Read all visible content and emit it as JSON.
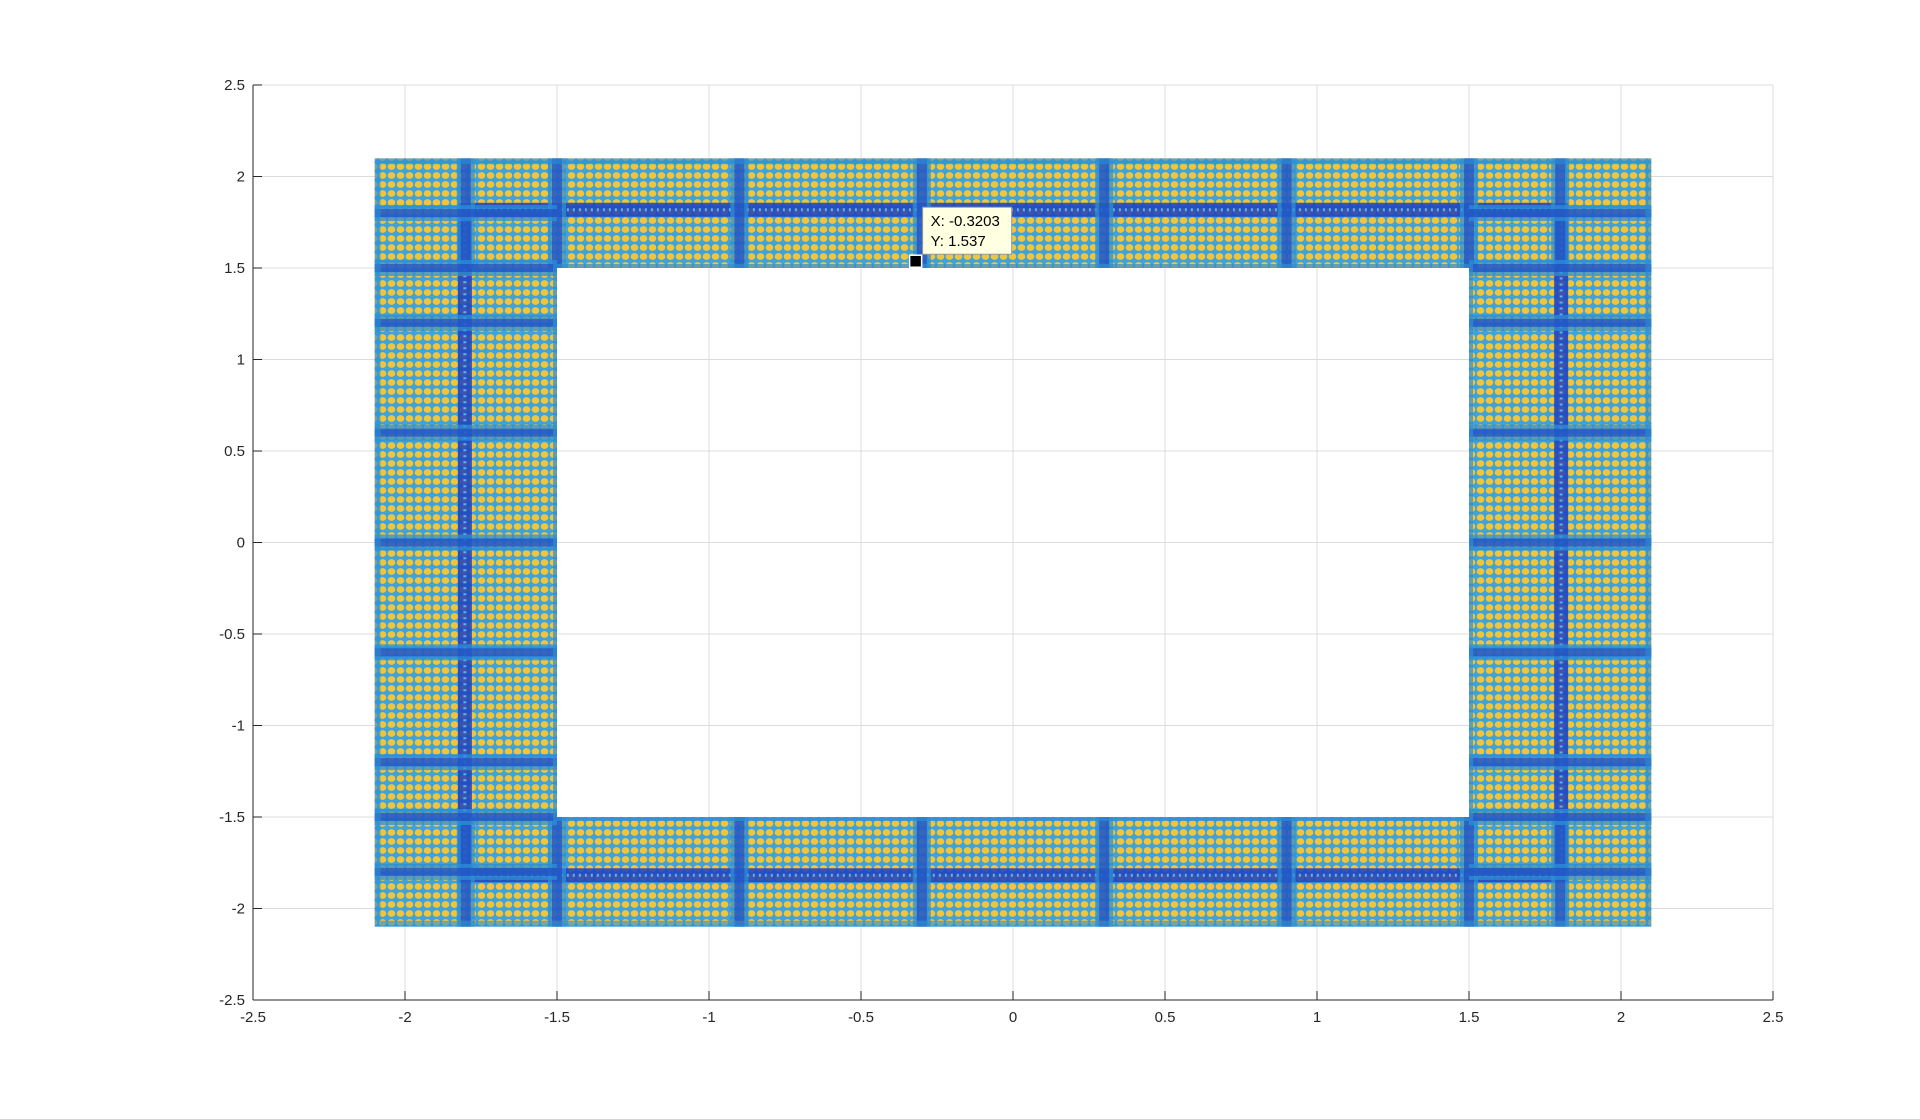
{
  "chart_data": {
    "type": "heatmap",
    "title": "",
    "xlabel": "",
    "ylabel": "",
    "xlim": [
      -2.5,
      2.5
    ],
    "ylim": [
      -2.5,
      2.5
    ],
    "xticks": [
      "-2.5",
      "-2",
      "-1.5",
      "-1",
      "-0.5",
      "0",
      "0.5",
      "1",
      "1.5",
      "2",
      "2.5"
    ],
    "yticks": [
      "2.5",
      "2",
      "1.5",
      "1",
      "0.5",
      "0",
      "-0.5",
      "-1",
      "-1.5",
      "-2",
      "-2.5"
    ],
    "grid": true,
    "outer_region": {
      "x": [
        -2.1,
        2.1
      ],
      "y": [
        -2.1,
        2.1
      ]
    },
    "inner_hole": {
      "x": [
        -1.5,
        1.5
      ],
      "y": [
        -1.5,
        1.5
      ]
    },
    "channel_offset": 0.28,
    "rib_positions_x": [
      -1.8,
      -1.5,
      -0.9,
      -0.3,
      0.3,
      0.9,
      1.5,
      1.8
    ],
    "rib_positions_y": [
      -1.8,
      -1.5,
      -1.2,
      -0.6,
      0.0,
      0.6,
      1.2,
      1.5,
      1.8
    ],
    "colors": {
      "high": "#f2c43a",
      "mid": "#2b8fd6",
      "low": "#1f3fbf",
      "grid": "#dcdcdc",
      "axis": "#262626",
      "datatip_bg": "#ffffe1"
    },
    "datatip": {
      "x": -0.3203,
      "y": 1.537,
      "x_label": "X: -0.3203",
      "y_label": "Y: 1.537"
    }
  }
}
